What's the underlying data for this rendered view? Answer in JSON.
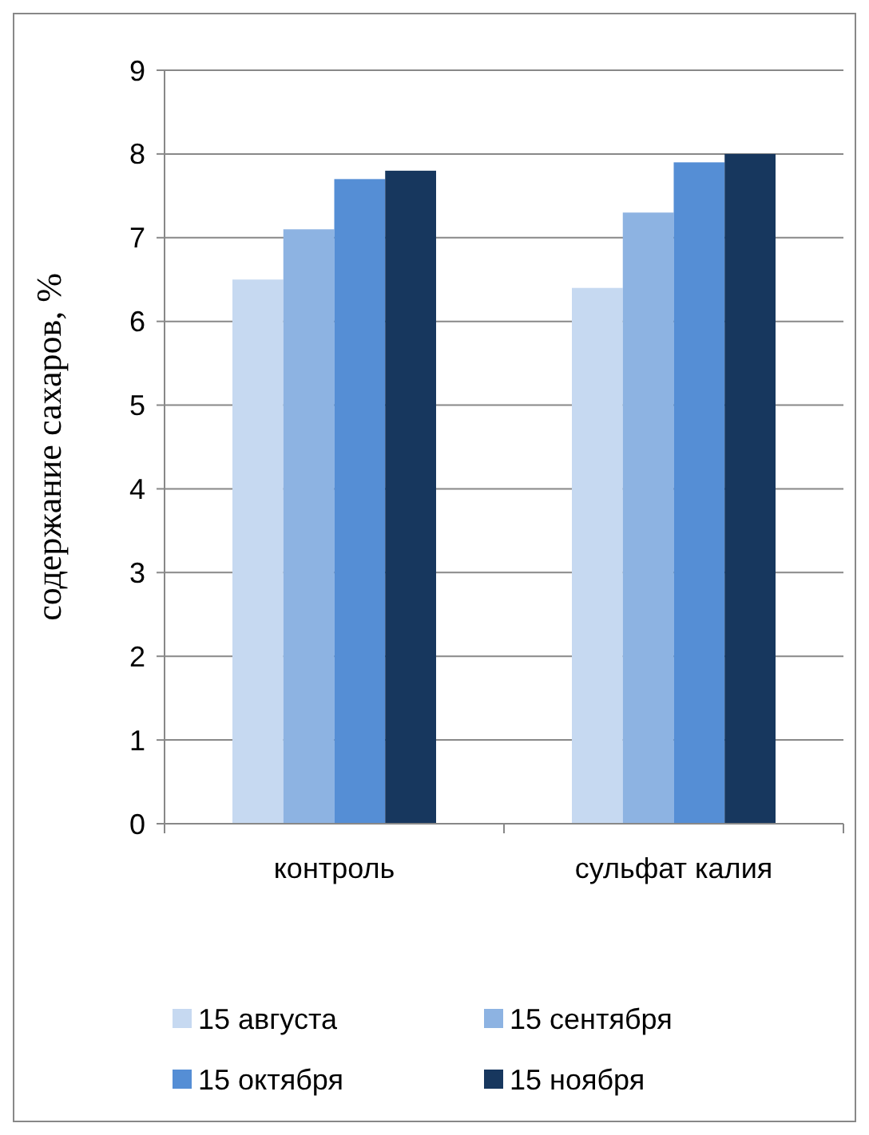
{
  "chart_data": {
    "type": "bar",
    "ylabel": "содержание сахаров, %",
    "categories": [
      "контроль",
      "сульфат калия"
    ],
    "series": [
      {
        "name": "15 августа",
        "color": "#c6d9f1",
        "values": [
          6.5,
          6.4
        ]
      },
      {
        "name": "15 сентября",
        "color": "#8db3e2",
        "values": [
          7.1,
          7.3
        ]
      },
      {
        "name": "15 октября",
        "color": "#558ed5",
        "values": [
          7.7,
          7.9
        ]
      },
      {
        "name": "15 ноября",
        "color": "#17375e",
        "values": [
          7.8,
          8.0
        ]
      }
    ],
    "ylim": [
      0,
      9
    ],
    "yticks": [
      0,
      1,
      2,
      3,
      4,
      5,
      6,
      7,
      8,
      9
    ],
    "grid": "y",
    "legend": "bottom"
  }
}
